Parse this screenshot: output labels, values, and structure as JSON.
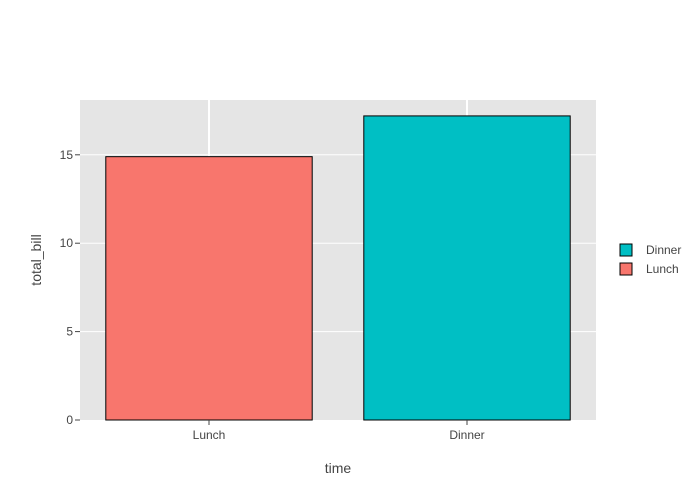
{
  "chart_data": {
    "type": "bar",
    "categories": [
      "Lunch",
      "Dinner"
    ],
    "values": [
      14.895,
      17.2
    ],
    "bar_colors": {
      "Lunch": "#F8766D",
      "Dinner": "#00BFC4"
    },
    "xlabel": "time",
    "ylabel": "total_bill",
    "ylim": [
      0,
      18.1
    ],
    "yticks": [
      0,
      5,
      10,
      15
    ],
    "legend": {
      "placement": "right",
      "entries": [
        {
          "name": "Dinner",
          "color": "#00BFC4"
        },
        {
          "name": "Lunch",
          "color": "#F8766D"
        }
      ]
    },
    "panel_background": "#E5E5E5",
    "grid": true
  }
}
